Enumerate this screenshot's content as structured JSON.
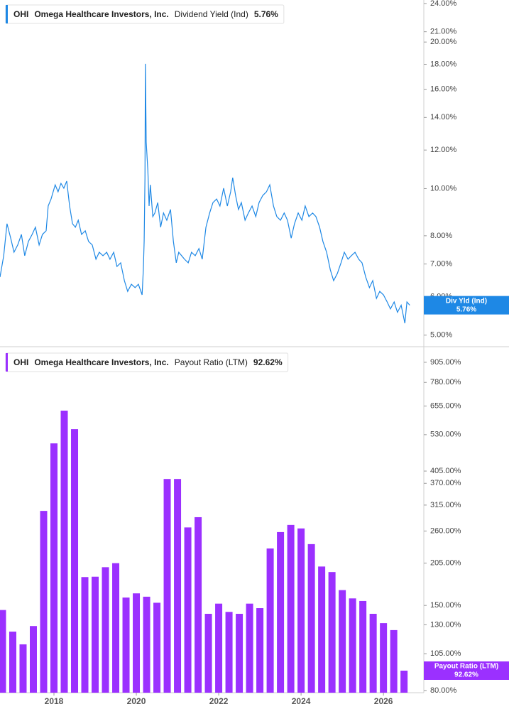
{
  "chart_data": [
    {
      "type": "line",
      "ticker": "OHI",
      "name": "Omega Healthcare Investors, Inc.",
      "axis_tag": "Div Yld (Ind)",
      "current_label": "5.76%",
      "log_scale": true,
      "xlim": [
        2016.69,
        2026.98
      ],
      "ylim": [
        4.75,
        24.4
      ],
      "yticks": [
        {
          "value": 24,
          "label": "24.00%"
        },
        {
          "value": 21,
          "label": "21.00%"
        },
        {
          "value": 20,
          "label": "20.00%"
        },
        {
          "value": 18,
          "label": "18.00%"
        },
        {
          "value": 16,
          "label": "16.00%"
        },
        {
          "value": 14,
          "label": "14.00%"
        },
        {
          "value": 12,
          "label": "12.00%"
        },
        {
          "value": 10,
          "label": "10.00%"
        },
        {
          "value": 8,
          "label": "8.00%"
        },
        {
          "value": 7,
          "label": "7.00%"
        },
        {
          "value": 6,
          "label": "6.00%"
        },
        {
          "value": 5,
          "label": "5.00%"
        }
      ],
      "x": [
        2016.69,
        2016.78,
        2016.86,
        2016.95,
        2017.03,
        2017.12,
        2017.21,
        2017.29,
        2017.38,
        2017.47,
        2017.55,
        2017.64,
        2017.72,
        2017.81,
        2017.86,
        2017.93,
        2018.03,
        2018.1,
        2018.17,
        2018.24,
        2018.31,
        2018.38,
        2018.45,
        2018.52,
        2018.59,
        2018.67,
        2018.76,
        2018.84,
        2018.93,
        2019.02,
        2019.1,
        2019.19,
        2019.28,
        2019.36,
        2019.45,
        2019.53,
        2019.62,
        2019.71,
        2019.79,
        2019.88,
        2019.97,
        2020.05,
        2020.14,
        2020.17,
        2020.19,
        2020.21,
        2020.22,
        2020.24,
        2020.28,
        2020.31,
        2020.34,
        2020.4,
        2020.45,
        2020.52,
        2020.59,
        2020.66,
        2020.74,
        2020.83,
        2020.9,
        2020.97,
        2021.03,
        2021.1,
        2021.17,
        2021.26,
        2021.34,
        2021.43,
        2021.52,
        2021.6,
        2021.69,
        2021.78,
        2021.86,
        2021.95,
        2022.03,
        2022.12,
        2022.21,
        2022.29,
        2022.34,
        2022.41,
        2022.48,
        2022.55,
        2022.64,
        2022.72,
        2022.81,
        2022.9,
        2022.98,
        2023.07,
        2023.16,
        2023.24,
        2023.33,
        2023.41,
        2023.5,
        2023.59,
        2023.67,
        2023.76,
        2023.84,
        2023.93,
        2024.02,
        2024.1,
        2024.19,
        2024.28,
        2024.36,
        2024.45,
        2024.53,
        2024.62,
        2024.71,
        2024.79,
        2024.88,
        2024.97,
        2025.05,
        2025.14,
        2025.22,
        2025.31,
        2025.4,
        2025.48,
        2025.57,
        2025.66,
        2025.74,
        2025.83,
        2025.91,
        2026.0,
        2026.09,
        2026.17,
        2026.26,
        2026.34,
        2026.43,
        2026.52,
        2026.57,
        2026.64
      ],
      "series": [
        {
          "name": "Dividend Yield (Ind)",
          "color": "#1e88e5",
          "values": [
            6.58,
            7.28,
            8.47,
            7.91,
            7.4,
            7.66,
            8.05,
            7.28,
            7.79,
            8.05,
            8.33,
            7.66,
            8.05,
            8.19,
            9.21,
            9.52,
            10.18,
            9.85,
            10.25,
            10.02,
            10.36,
            9.21,
            8.47,
            8.33,
            8.61,
            8.05,
            8.19,
            7.79,
            7.66,
            7.16,
            7.4,
            7.28,
            7.4,
            7.16,
            7.4,
            6.92,
            7.04,
            6.47,
            6.15,
            6.36,
            6.26,
            6.36,
            6.05,
            6.81,
            7.79,
            10.53,
            18.04,
            12.46,
            10.9,
            9.21,
            10.18,
            8.76,
            8.91,
            9.36,
            8.33,
            8.91,
            8.61,
            9.06,
            7.79,
            7.04,
            7.4,
            7.28,
            7.16,
            7.04,
            7.4,
            7.28,
            7.53,
            7.16,
            8.33,
            8.91,
            9.36,
            9.52,
            9.21,
            10.02,
            9.21,
            9.85,
            10.53,
            9.68,
            9.06,
            9.36,
            8.61,
            8.91,
            9.21,
            8.76,
            9.36,
            9.68,
            9.85,
            10.18,
            9.21,
            8.76,
            8.61,
            8.91,
            8.61,
            7.91,
            8.47,
            8.91,
            8.61,
            9.21,
            8.76,
            8.91,
            8.76,
            8.33,
            7.79,
            7.4,
            6.81,
            6.47,
            6.69,
            7.04,
            7.4,
            7.16,
            7.28,
            7.4,
            7.16,
            7.04,
            6.58,
            6.26,
            6.47,
            5.95,
            6.15,
            6.05,
            5.85,
            5.66,
            5.85,
            5.57,
            5.76,
            5.29,
            5.85,
            5.76
          ]
        }
      ]
    },
    {
      "type": "bar",
      "ticker": "OHI",
      "name": "Omega Healthcare Investors, Inc.",
      "axis_tag": "Payout Ratio (LTM)",
      "current_label": "92.62%",
      "log_scale": true,
      "xlim": [
        2016.69,
        2026.98
      ],
      "ylim": [
        78.7,
        1005
      ],
      "xticks": [
        2018,
        2020,
        2022,
        2024,
        2026
      ],
      "yticks": [
        {
          "value": 905,
          "label": "905.00%"
        },
        {
          "value": 780,
          "label": "780.00%"
        },
        {
          "value": 655,
          "label": "655.00%"
        },
        {
          "value": 530,
          "label": "530.00%"
        },
        {
          "value": 405,
          "label": "405.00%"
        },
        {
          "value": 370,
          "label": "370.00%"
        },
        {
          "value": 315,
          "label": "315.00%"
        },
        {
          "value": 260,
          "label": "260.00%"
        },
        {
          "value": 205,
          "label": "205.00%"
        },
        {
          "value": 150,
          "label": "150.00%"
        },
        {
          "value": 130,
          "label": "130.00%"
        },
        {
          "value": 105,
          "label": "105.00%"
        },
        {
          "value": 80,
          "label": "80.00%"
        }
      ],
      "x": [
        2016.75,
        2017,
        2017.25,
        2017.5,
        2017.75,
        2018,
        2018.25,
        2018.5,
        2018.75,
        2019,
        2019.25,
        2019.5,
        2019.75,
        2020,
        2020.25,
        2020.5,
        2020.75,
        2021,
        2021.25,
        2021.5,
        2021.75,
        2022,
        2022.25,
        2022.5,
        2022.75,
        2023,
        2023.25,
        2023.5,
        2023.75,
        2024,
        2024.25,
        2024.5,
        2024.75,
        2025,
        2025.25,
        2025.5,
        2025.75,
        2026,
        2026.25,
        2026.5
      ],
      "series": [
        {
          "name": "Payout Ratio (LTM)",
          "color": "#9b30ff",
          "values": [
            145,
            123.6,
            112.5,
            128.8,
            301.7,
            497,
            633,
            552,
            185,
            185.5,
            199,
            205,
            159,
            164,
            160,
            153,
            382,
            382,
            267,
            288,
            141,
            152,
            143,
            141,
            152,
            147,
            228.5,
            258,
            272,
            265,
            236,
            200,
            192,
            168,
            158,
            155,
            141,
            131.6,
            125,
            92.62
          ]
        }
      ]
    }
  ]
}
